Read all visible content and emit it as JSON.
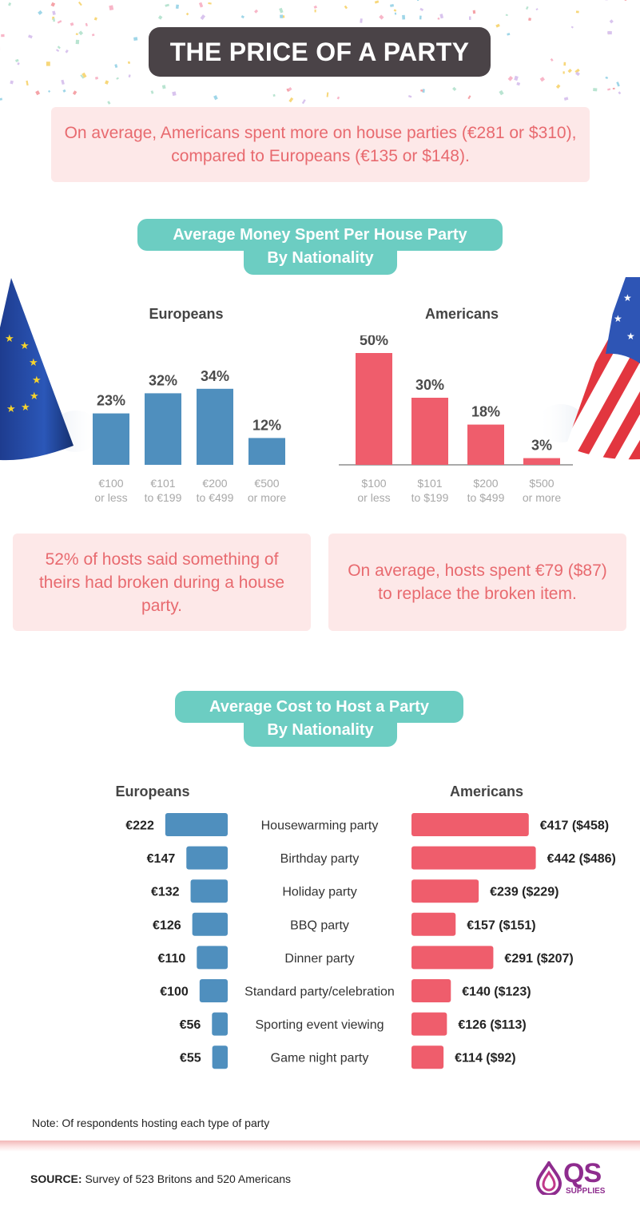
{
  "title": "THE PRICE OF A PARTY",
  "intro_text": "On average, Americans spent more on house parties (€281 or $310), compared to Europeans (€135 or $148).",
  "section1": {
    "title_line1": "Average Money Spent Per House Party",
    "title_line2": "By Nationality"
  },
  "facts": {
    "broken": "52% of hosts said something of theirs had broken during a house party.",
    "replace": "On average, hosts spent €79 ($87) to replace the broken item."
  },
  "section2": {
    "title_line1": "Average Cost to Host a Party",
    "title_line2": "By Nationality"
  },
  "note": "Note: Of respondents hosting each type of party",
  "source_label": "SOURCE:",
  "source_text": " Survey of 523 Britons and 520 Americans",
  "logo": {
    "letters": "QS",
    "sub": "SUPPLIES"
  },
  "colors": {
    "europe_blue": "#4f8fbe",
    "america_red": "#ef5d6c",
    "teal": "#6ccdc2",
    "dark": "#4a4347",
    "pink_bg": "#fde8e8",
    "pink_text": "#e86a6f",
    "logo_purple": "#8e2c8e"
  },
  "chart_data": [
    {
      "type": "bar",
      "title": "Europeans",
      "categories": [
        [
          "€100",
          "or less"
        ],
        [
          "€101",
          "to €199"
        ],
        [
          "€200",
          "to €499"
        ],
        [
          "€500",
          "or more"
        ]
      ],
      "values": [
        23,
        32,
        34,
        12
      ],
      "labels": [
        "23%",
        "32%",
        "34%",
        "12%"
      ],
      "unit": "%",
      "ylim": [
        0,
        50
      ]
    },
    {
      "type": "bar",
      "title": "Americans",
      "categories": [
        [
          "$100",
          "or less"
        ],
        [
          "$101",
          "to $199"
        ],
        [
          "$200",
          "to $499"
        ],
        [
          "$500",
          "or more"
        ]
      ],
      "values": [
        50,
        30,
        18,
        3
      ],
      "labels": [
        "50%",
        "30%",
        "18%",
        "3%"
      ],
      "unit": "%",
      "ylim": [
        0,
        50
      ]
    },
    {
      "type": "bar",
      "orientation": "horizontal-butterfly",
      "left_title": "Europeans",
      "right_title": "Americans",
      "categories": [
        "Housewarming party",
        "Birthday party",
        "Holiday party",
        "BBQ party",
        "Dinner party",
        "Standard party/celebration",
        "Sporting event viewing",
        "Game night party"
      ],
      "series": [
        {
          "name": "Europeans",
          "values": [
            222,
            147,
            132,
            126,
            110,
            100,
            56,
            55
          ],
          "labels": [
            "€222",
            "€147",
            "€132",
            "€126",
            "€110",
            "€100",
            "€56",
            "€55"
          ]
        },
        {
          "name": "Americans",
          "values": [
            417,
            442,
            239,
            157,
            291,
            140,
            126,
            114
          ],
          "labels": [
            "€417 ($458)",
            "€442 ($486)",
            "€239 ($229)",
            "€157 ($151)",
            "€291 ($207)",
            "€140 ($123)",
            "€126 ($113)",
            "€114 ($92)"
          ]
        }
      ]
    }
  ]
}
